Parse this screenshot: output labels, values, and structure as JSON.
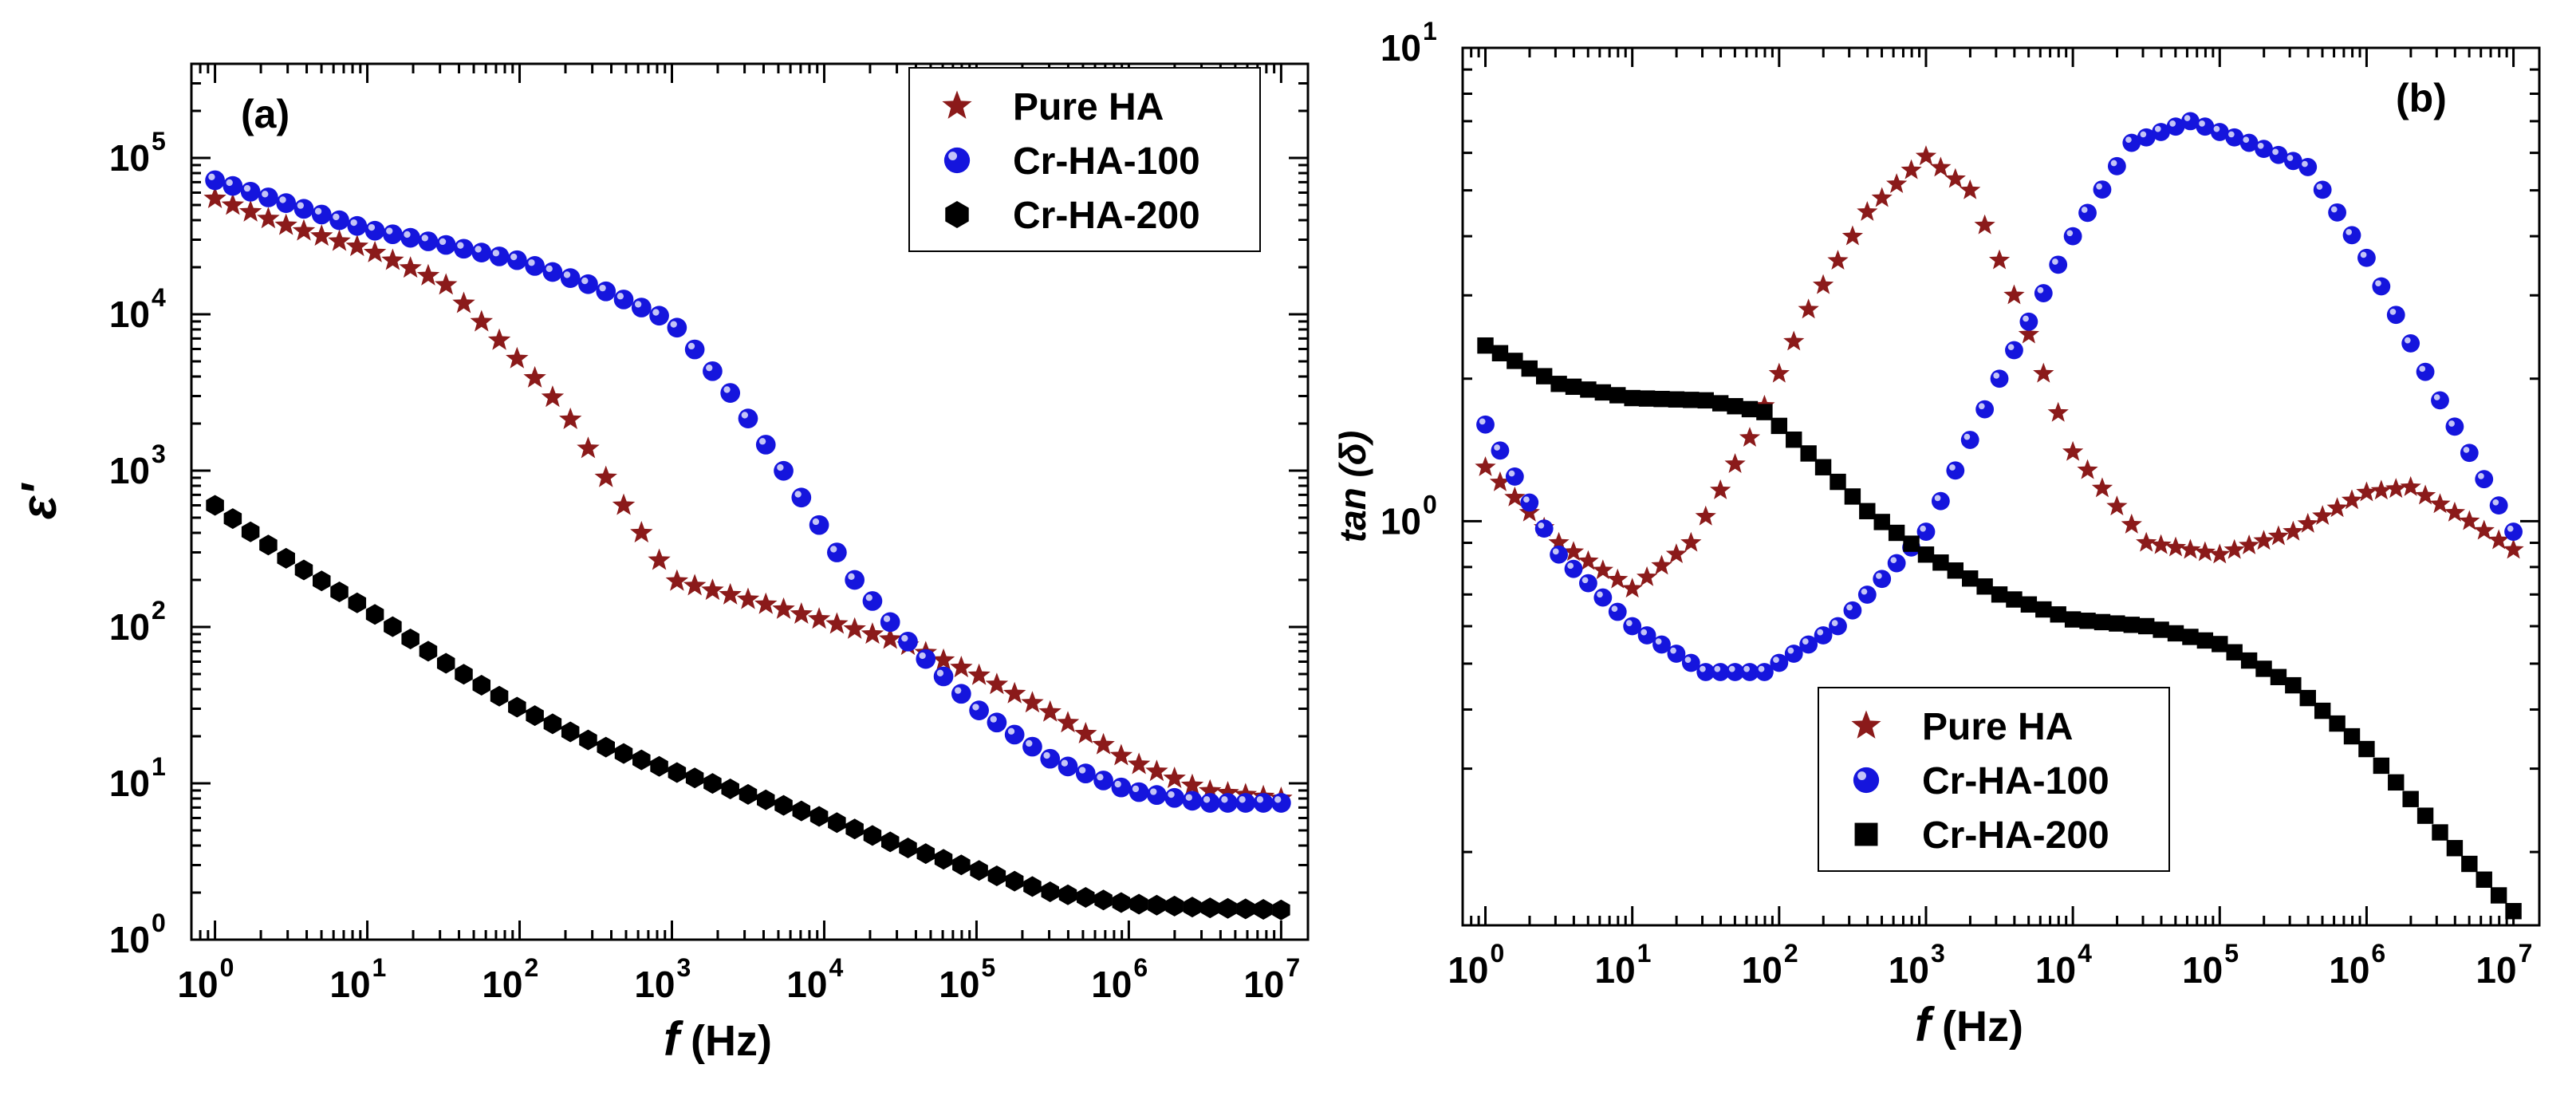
{
  "figure": {
    "colors": {
      "pure_ha": "#8B1A1A",
      "cr_ha_100": "#1515DD",
      "cr_ha_200": "#000000",
      "axis": "#000000"
    }
  },
  "chart_data": [
    {
      "id": "a",
      "type": "scatter",
      "panel_label": "(a)",
      "title": "",
      "xlabel": "f",
      "xlabel_unit": "(Hz)",
      "ylabel": "ε'",
      "xscale": "log",
      "yscale": "log",
      "xlim": [
        0.7,
        15000000
      ],
      "ylim": [
        1,
        400000
      ],
      "x_ticks": [
        {
          "value": 1,
          "base": "10",
          "exp": "0"
        },
        {
          "value": 10,
          "base": "10",
          "exp": "1"
        },
        {
          "value": 100,
          "base": "10",
          "exp": "2"
        },
        {
          "value": 1000,
          "base": "10",
          "exp": "3"
        },
        {
          "value": 10000,
          "base": "10",
          "exp": "4"
        },
        {
          "value": 100000,
          "base": "10",
          "exp": "5"
        },
        {
          "value": 1000000,
          "base": "10",
          "exp": "6"
        },
        {
          "value": 10000000,
          "base": "10",
          "exp": "7"
        }
      ],
      "y_ticks": [
        {
          "value": 1,
          "base": "10",
          "exp": "0"
        },
        {
          "value": 10,
          "base": "10",
          "exp": "1"
        },
        {
          "value": 100,
          "base": "10",
          "exp": "2"
        },
        {
          "value": 1000,
          "base": "10",
          "exp": "3"
        },
        {
          "value": 10000,
          "base": "10",
          "exp": "4"
        },
        {
          "value": 100000,
          "base": "10",
          "exp": "5"
        }
      ],
      "legend": {
        "position": "top-right",
        "entries": [
          "Pure HA",
          "Cr-HA-100",
          "Cr-HA-200"
        ]
      },
      "series": [
        {
          "name": "Pure HA",
          "marker": "star",
          "color": "#8B1A1A",
          "points": [
            [
              0,
              55000
            ],
            [
              0.5,
              36000
            ],
            [
              1,
              26000
            ],
            [
              1.5,
              16000
            ],
            [
              2,
              5000
            ],
            [
              2.3,
              2400
            ],
            [
              2.6,
              800
            ],
            [
              3,
              200
            ],
            [
              3.5,
              150
            ],
            [
              4,
              110
            ],
            [
              4.5,
              80
            ],
            [
              5,
              50
            ],
            [
              5.5,
              28
            ],
            [
              6,
              14
            ],
            [
              6.5,
              9
            ],
            [
              7,
              8
            ]
          ]
        },
        {
          "name": "Cr-HA-100",
          "marker": "sphere",
          "color": "#1515DD",
          "points": [
            [
              0,
              72000
            ],
            [
              1,
              35000
            ],
            [
              1.5,
              28000
            ],
            [
              2,
              22000
            ],
            [
              2.5,
              15000
            ],
            [
              3,
              9000
            ],
            [
              3.4,
              3000
            ],
            [
              3.8,
              800
            ],
            [
              4.2,
              200
            ],
            [
              4.5,
              90
            ],
            [
              5,
              30
            ],
            [
              5.5,
              14
            ],
            [
              6,
              9
            ],
            [
              6.5,
              7.5
            ],
            [
              7,
              7.5
            ]
          ]
        },
        {
          "name": "Cr-HA-200",
          "marker": "hexagon",
          "color": "#000000",
          "points": [
            [
              0,
              600
            ],
            [
              0.5,
              260
            ],
            [
              1,
              130
            ],
            [
              1.5,
              60
            ],
            [
              2,
              30
            ],
            [
              2.5,
              18
            ],
            [
              3,
              12
            ],
            [
              3.5,
              8.5
            ],
            [
              4,
              6
            ],
            [
              4.5,
              4
            ],
            [
              5,
              2.8
            ],
            [
              5.5,
              2
            ],
            [
              6,
              1.7
            ],
            [
              6.5,
              1.6
            ],
            [
              7,
              1.55
            ]
          ]
        }
      ]
    },
    {
      "id": "b",
      "type": "scatter",
      "panel_label": "(b)",
      "title": "",
      "xlabel": "f",
      "xlabel_unit": "(Hz)",
      "ylabel": "tan (δ)",
      "xscale": "log",
      "yscale": "log",
      "xlim": [
        0.7,
        15000000
      ],
      "ylim": [
        0.14,
        10
      ],
      "x_ticks": [
        {
          "value": 1,
          "base": "10",
          "exp": "0"
        },
        {
          "value": 10,
          "base": "10",
          "exp": "1"
        },
        {
          "value": 100,
          "base": "10",
          "exp": "2"
        },
        {
          "value": 1000,
          "base": "10",
          "exp": "3"
        },
        {
          "value": 10000,
          "base": "10",
          "exp": "4"
        },
        {
          "value": 100000,
          "base": "10",
          "exp": "5"
        },
        {
          "value": 1000000,
          "base": "10",
          "exp": "6"
        },
        {
          "value": 10000000,
          "base": "10",
          "exp": "7"
        }
      ],
      "y_ticks": [
        {
          "value": 1,
          "base": "10",
          "exp": "0"
        },
        {
          "value": 10,
          "base": "10",
          "exp": "1"
        }
      ],
      "legend": {
        "position": "bottom-center",
        "entries": [
          "Pure HA",
          "Cr-HA-100",
          "Cr-HA-200"
        ]
      },
      "series": [
        {
          "name": "Pure HA",
          "marker": "star",
          "color": "#8B1A1A",
          "points": [
            [
              0,
              1.3
            ],
            [
              0.5,
              0.9
            ],
            [
              1,
              0.72
            ],
            [
              1.4,
              0.9
            ],
            [
              1.8,
              1.5
            ],
            [
              2.2,
              2.8
            ],
            [
              2.6,
              4.5
            ],
            [
              3,
              5.9
            ],
            [
              3.3,
              5.0
            ],
            [
              3.6,
              3.0
            ],
            [
              4,
              1.4
            ],
            [
              4.5,
              0.9
            ],
            [
              5,
              0.85
            ],
            [
              5.5,
              0.95
            ],
            [
              6,
              1.15
            ],
            [
              6.3,
              1.18
            ],
            [
              6.7,
              1.0
            ],
            [
              7,
              0.87
            ]
          ]
        },
        {
          "name": "Cr-HA-100",
          "marker": "sphere",
          "color": "#1515DD",
          "points": [
            [
              0,
              1.6
            ],
            [
              0.5,
              0.85
            ],
            [
              1,
              0.6
            ],
            [
              1.5,
              0.48
            ],
            [
              1.9,
              0.48
            ],
            [
              2.4,
              0.6
            ],
            [
              3,
              0.95
            ],
            [
              3.5,
              2.0
            ],
            [
              4,
              4.0
            ],
            [
              4.4,
              6.3
            ],
            [
              4.8,
              7.0
            ],
            [
              5.2,
              6.3
            ],
            [
              5.6,
              5.6
            ],
            [
              6,
              3.6
            ],
            [
              6.5,
              1.8
            ],
            [
              7,
              0.95
            ]
          ]
        },
        {
          "name": "Cr-HA-200",
          "marker": "square",
          "color": "#000000",
          "points": [
            [
              0,
              2.35
            ],
            [
              0.5,
              1.95
            ],
            [
              1,
              1.82
            ],
            [
              1.5,
              1.8
            ],
            [
              1.9,
              1.7
            ],
            [
              2.3,
              1.3
            ],
            [
              2.6,
              1.05
            ],
            [
              3,
              0.85
            ],
            [
              3.5,
              0.7
            ],
            [
              4,
              0.62
            ],
            [
              4.5,
              0.6
            ],
            [
              5,
              0.55
            ],
            [
              5.5,
              0.45
            ],
            [
              6,
              0.33
            ],
            [
              6.5,
              0.22
            ],
            [
              7,
              0.15
            ]
          ]
        }
      ]
    }
  ]
}
